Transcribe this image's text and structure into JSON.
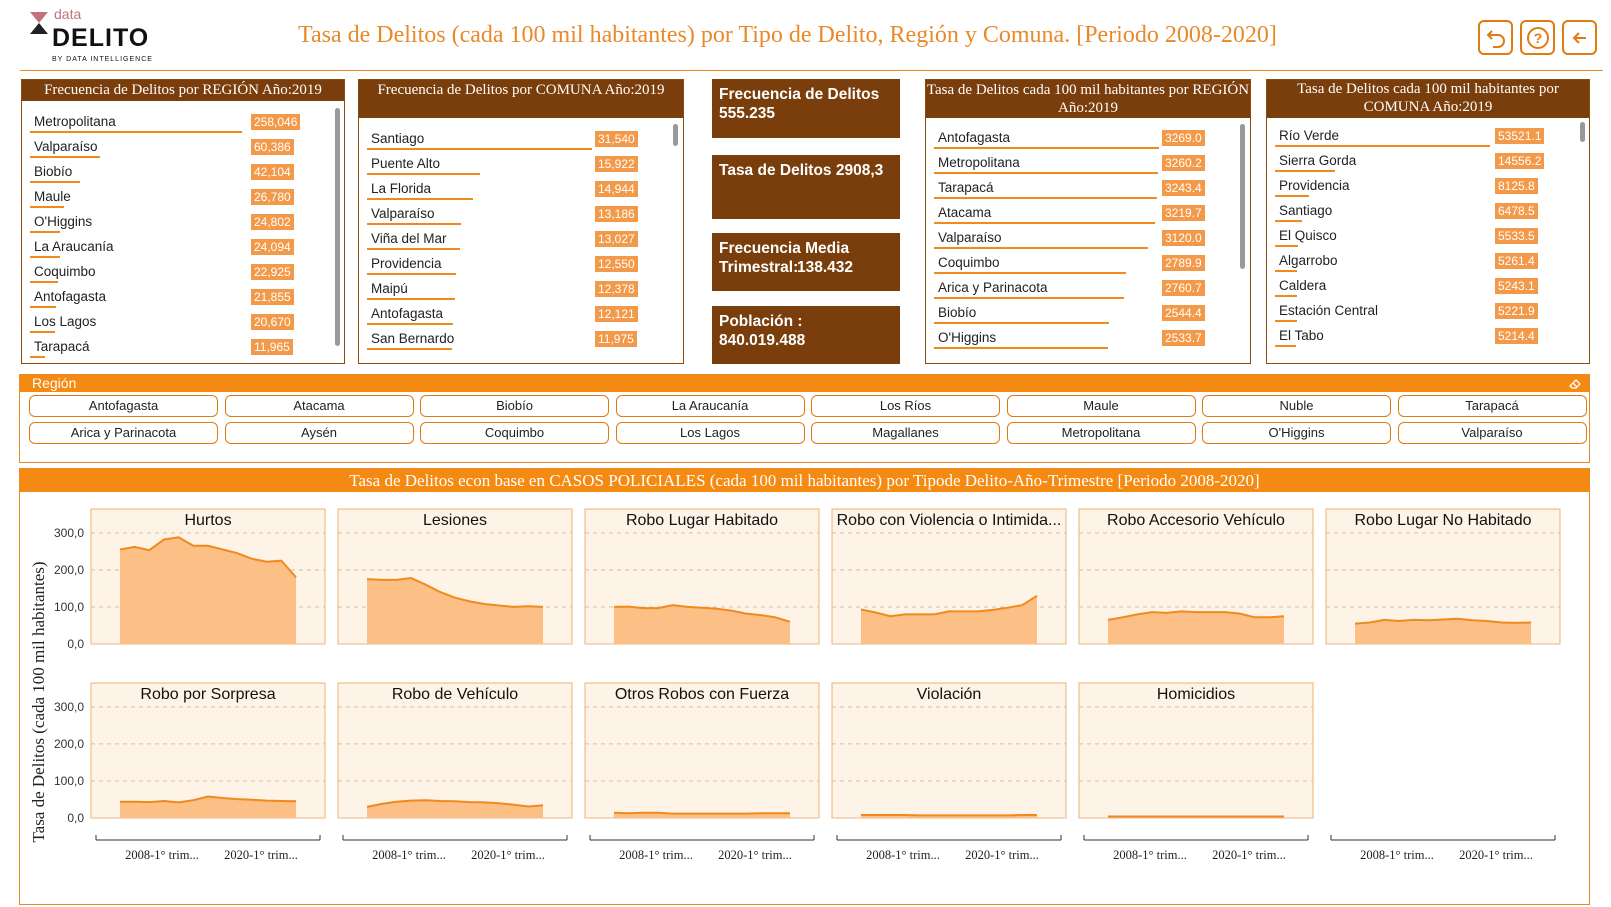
{
  "header": {
    "logo_top": "data",
    "logo_main": "DELITO",
    "logo_by": "BY DATA INTELLIGENCE",
    "title": "Tasa de Delitos (cada 100 mil habitantes) por Tipo de Delito, Región y Comuna. [Periodo 2008-2020]",
    "buttons": [
      "undo-icon",
      "help-icon",
      "back-arrow-icon"
    ]
  },
  "panels": [
    {
      "title": "Frecuencia de Delitos por REGIÓN Año:2019",
      "rows": [
        {
          "label": "Metropolitana",
          "value": "258,046",
          "num": 258046
        },
        {
          "label": "Valparaíso",
          "value": "60,386",
          "num": 60386
        },
        {
          "label": "Biobío",
          "value": "42,104",
          "num": 42104
        },
        {
          "label": "Maule",
          "value": "26,780",
          "num": 26780
        },
        {
          "label": "O'Higgins",
          "value": "24,802",
          "num": 24802
        },
        {
          "label": "La Araucanía",
          "value": "24,094",
          "num": 24094
        },
        {
          "label": "Coquimbo",
          "value": "22,925",
          "num": 22925
        },
        {
          "label": "Antofagasta",
          "value": "21,855",
          "num": 21855
        },
        {
          "label": "Los Lagos",
          "value": "20,670",
          "num": 20670
        },
        {
          "label": "Tarapacá",
          "value": "11,965",
          "num": 11965
        }
      ]
    },
    {
      "title": "Frecuencia de Delitos por COMUNA Año:2019",
      "rows": [
        {
          "label": "Santiago",
          "value": "31,540",
          "num": 31540
        },
        {
          "label": "Puente Alto",
          "value": "15,922",
          "num": 15922
        },
        {
          "label": "La Florida",
          "value": "14,944",
          "num": 14944
        },
        {
          "label": "Valparaíso",
          "value": "13,186",
          "num": 13186
        },
        {
          "label": "Viña del Mar",
          "value": "13,027",
          "num": 13027
        },
        {
          "label": "Providencia",
          "value": "12,550",
          "num": 12550
        },
        {
          "label": "Maipú",
          "value": "12,378",
          "num": 12378
        },
        {
          "label": "Antofagasta",
          "value": "12,121",
          "num": 12121
        },
        {
          "label": "San Bernardo",
          "value": "11,975",
          "num": 11975
        }
      ]
    },
    {
      "title": "Tasa de Delitos cada 100 mil habitantes por REGIÓN Año:2019",
      "rows": [
        {
          "label": "Antofagasta",
          "value": "3269.0",
          "num": 3269.0
        },
        {
          "label": "Metropolitana",
          "value": "3260.2",
          "num": 3260.2
        },
        {
          "label": "Tarapacá",
          "value": "3243.4",
          "num": 3243.4
        },
        {
          "label": "Atacama",
          "value": "3219.7",
          "num": 3219.7
        },
        {
          "label": "Valparaíso",
          "value": "3120.0",
          "num": 3120.0
        },
        {
          "label": "Coquimbo",
          "value": "2789.9",
          "num": 2789.9
        },
        {
          "label": "Arica y Parinacota",
          "value": "2760.7",
          "num": 2760.7
        },
        {
          "label": "Biobío",
          "value": "2544.4",
          "num": 2544.4
        },
        {
          "label": "O'Higgins",
          "value": "2533.7",
          "num": 2533.7
        }
      ]
    },
    {
      "title": "Tasa de Delitos cada 100 mil habitantes por COMUNA Año:2019",
      "rows": [
        {
          "label": "Río Verde",
          "value": "53521.1",
          "num": 53521.1
        },
        {
          "label": "Sierra Gorda",
          "value": "14556.2",
          "num": 14556.2
        },
        {
          "label": "Providencia",
          "value": "8125.8",
          "num": 8125.8
        },
        {
          "label": "Santiago",
          "value": "6478.5",
          "num": 6478.5
        },
        {
          "label": "El Quisco",
          "value": "5533.5",
          "num": 5533.5
        },
        {
          "label": "Algarrobo",
          "value": "5261.4",
          "num": 5261.4
        },
        {
          "label": "Caldera",
          "value": "5243.1",
          "num": 5243.1
        },
        {
          "label": "Estación Central",
          "value": "5221.9",
          "num": 5221.9
        },
        {
          "label": "El Tabo",
          "value": "5214.4",
          "num": 5214.4
        }
      ]
    }
  ],
  "kpis": [
    {
      "label": "Frecuencia de Delitos",
      "value": "555.235"
    },
    {
      "label": "Tasa de Delitos",
      "value": "2908,3"
    },
    {
      "label": "Frecuencia Media Trimestral:",
      "value": "138.432"
    },
    {
      "label": "Población :",
      "value": "840.019.488"
    }
  ],
  "region_filter": {
    "title": "Región",
    "options": [
      "Antofagasta",
      "Atacama",
      "Biobío",
      "La Araucanía",
      "Los Ríos",
      "Maule",
      "Nuble",
      "Tarapacá",
      "Arica y Parinacota",
      "Aysén",
      "Coquimbo",
      "Los Lagos",
      "Magallanes",
      "Metropolitana",
      "O'Higgins",
      "Valparaíso"
    ]
  },
  "chart_data": {
    "type": "area",
    "title": "Tasa de Delitos econ base en CASOS POLICIALES (cada 100 mil habitantes) por Tipode Delito-Año-Trimestre [Periodo 2008-2020]",
    "ylabel": "Tasa de Delitos (cada 100 mil habitantes)",
    "yticks": [
      "300,0",
      "200,0",
      "100,0",
      "0,0"
    ],
    "ylim": [
      0,
      340
    ],
    "xtick_labels": [
      "2008-1° trim...",
      "2020-1° trim..."
    ],
    "grid": "dashed horizontal",
    "series": [
      {
        "name": "Hurtos",
        "values": [
          255,
          262,
          253,
          282,
          288,
          265,
          265,
          255,
          245,
          230,
          222,
          225,
          180
        ]
      },
      {
        "name": "Lesiones",
        "values": [
          175,
          173,
          173,
          178,
          160,
          140,
          125,
          115,
          108,
          104,
          100,
          102,
          100
        ]
      },
      {
        "name": "Robo Lugar Habitado",
        "values": [
          100,
          101,
          97,
          97,
          105,
          100,
          98,
          95,
          90,
          82,
          78,
          72,
          60
        ]
      },
      {
        "name": "Robo con Violencia o Intimida...",
        "values": [
          93,
          85,
          75,
          80,
          80,
          80,
          88,
          88,
          88,
          92,
          98,
          105,
          130
        ]
      },
      {
        "name": "Robo Accesorio Vehículo",
        "values": [
          65,
          72,
          80,
          86,
          84,
          88,
          86,
          86,
          86,
          82,
          72,
          72,
          75
        ]
      },
      {
        "name": "Robo Lugar No Habitado",
        "values": [
          55,
          58,
          65,
          62,
          65,
          64,
          66,
          68,
          64,
          62,
          58,
          57,
          58
        ]
      },
      {
        "name": "Robo por Sorpresa",
        "values": [
          44,
          44,
          43,
          46,
          42,
          48,
          58,
          54,
          51,
          49,
          47,
          46,
          45
        ]
      },
      {
        "name": "Robo de Vehículo",
        "values": [
          30,
          38,
          44,
          47,
          48,
          46,
          45,
          43,
          42,
          40,
          36,
          31,
          34
        ]
      },
      {
        "name": "Otros Robos con Fuerza",
        "values": [
          14,
          13,
          14,
          14,
          12,
          12,
          12,
          12,
          12,
          12,
          13,
          13,
          13
        ]
      },
      {
        "name": "Violación",
        "values": [
          8,
          8,
          8,
          8,
          7,
          7,
          7,
          7,
          7,
          7,
          7,
          8,
          8
        ]
      },
      {
        "name": "Homicidios",
        "values": [
          4,
          4,
          4,
          4,
          4,
          4,
          4,
          4,
          4,
          4,
          4,
          4,
          4
        ]
      }
    ]
  }
}
